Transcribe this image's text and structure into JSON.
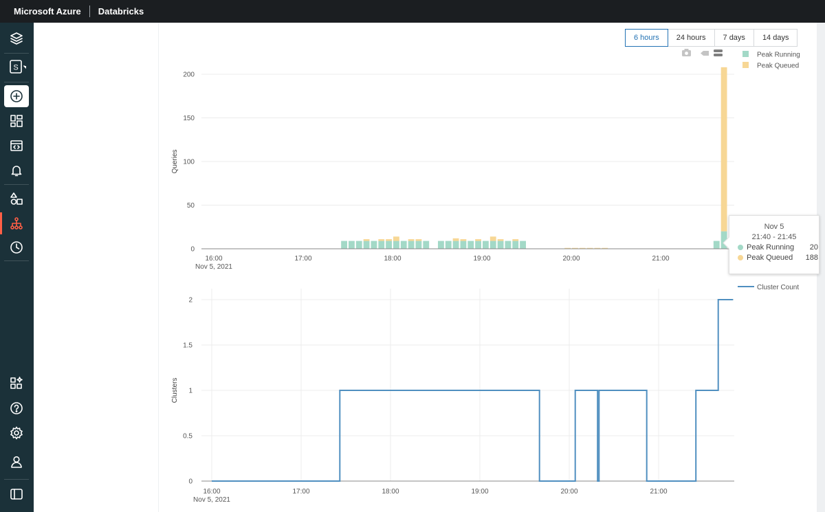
{
  "topbar": {
    "brand": "Microsoft Azure",
    "product": "Databricks"
  },
  "sidebar": {
    "items": [
      {
        "icon": "layers-icon"
      },
      {
        "icon": "workspace-switcher-icon",
        "label": "S"
      },
      {
        "icon": "create-icon"
      },
      {
        "icon": "dashboards-icon"
      },
      {
        "icon": "queries-icon"
      },
      {
        "icon": "alerts-icon"
      },
      {
        "icon": "data-icon"
      },
      {
        "icon": "sql-endpoints-icon"
      },
      {
        "icon": "history-icon"
      },
      {
        "icon": "partner-connect-icon"
      },
      {
        "icon": "help-icon"
      },
      {
        "icon": "settings-icon"
      },
      {
        "icon": "user-icon"
      },
      {
        "icon": "collapse-sidebar-icon"
      }
    ]
  },
  "time_range": {
    "options": [
      "6 hours",
      "24 hours",
      "7 days",
      "14 days"
    ],
    "selected": "6 hours"
  },
  "toolbar_icons": [
    "camera-icon",
    "compare-hover-icon",
    "closest-hover-icon"
  ],
  "tooltip": {
    "date": "Nov 5",
    "range": "21:40 - 21:45",
    "rows": [
      {
        "label": "Peak Running",
        "value": "20"
      },
      {
        "label": "Peak Queued",
        "value": "188"
      }
    ]
  },
  "colors": {
    "running": "#a3d9c7",
    "queued": "#f7d795",
    "cluster_line": "#4f8fc0",
    "accent": "#2272b4",
    "sidebar_active": "#ff5f46"
  },
  "chart_data": [
    {
      "type": "bar",
      "stacked": true,
      "ylabel": "Queries",
      "ylim": [
        0,
        210
      ],
      "yticks": [
        "200",
        "150",
        "100",
        "50",
        "0"
      ],
      "xticks": [
        "16:00",
        "17:00",
        "18:00",
        "19:00",
        "20:00",
        "21:00"
      ],
      "xsublabel": "Nov 5, 2021",
      "bin_minutes": 5,
      "legend": [
        "Peak Running",
        "Peak Queued"
      ],
      "legend_position": "top-right",
      "series": [
        {
          "name": "Peak Running",
          "points": [
            [
              "17:25",
              9
            ],
            [
              "17:30",
              9
            ],
            [
              "17:35",
              9
            ],
            [
              "17:40",
              9
            ],
            [
              "17:45",
              9
            ],
            [
              "17:50",
              9
            ],
            [
              "17:55",
              9
            ],
            [
              "18:00",
              9
            ],
            [
              "18:05",
              9
            ],
            [
              "18:10",
              9
            ],
            [
              "18:15",
              9
            ],
            [
              "18:20",
              9
            ],
            [
              "18:30",
              9
            ],
            [
              "18:35",
              9
            ],
            [
              "18:40",
              9
            ],
            [
              "18:45",
              9
            ],
            [
              "18:50",
              9
            ],
            [
              "18:55",
              9
            ],
            [
              "19:00",
              9
            ],
            [
              "19:05",
              9
            ],
            [
              "19:10",
              9
            ],
            [
              "19:15",
              9
            ],
            [
              "19:20",
              9
            ],
            [
              "19:25",
              9
            ],
            [
              "21:35",
              9
            ],
            [
              "21:40",
              20
            ]
          ]
        },
        {
          "name": "Peak Queued",
          "points": [
            [
              "17:25",
              0
            ],
            [
              "17:30",
              0
            ],
            [
              "17:35",
              0
            ],
            [
              "17:40",
              2
            ],
            [
              "17:45",
              0
            ],
            [
              "17:50",
              2
            ],
            [
              "17:55",
              2
            ],
            [
              "18:00",
              5
            ],
            [
              "18:05",
              0
            ],
            [
              "18:10",
              2
            ],
            [
              "18:15",
              2
            ],
            [
              "18:20",
              0
            ],
            [
              "18:30",
              0
            ],
            [
              "18:35",
              0
            ],
            [
              "18:40",
              3
            ],
            [
              "18:45",
              2
            ],
            [
              "18:50",
              0
            ],
            [
              "18:55",
              2
            ],
            [
              "19:00",
              0
            ],
            [
              "19:05",
              5
            ],
            [
              "19:10",
              2
            ],
            [
              "19:15",
              0
            ],
            [
              "19:20",
              2
            ],
            [
              "19:25",
              0
            ],
            [
              "19:55",
              1
            ],
            [
              "20:00",
              1
            ],
            [
              "20:05",
              1
            ],
            [
              "20:10",
              1
            ],
            [
              "20:15",
              1
            ],
            [
              "20:20",
              1
            ],
            [
              "21:35",
              0
            ],
            [
              "21:40",
              188
            ]
          ]
        }
      ]
    },
    {
      "type": "line",
      "line_shape": "step",
      "ylabel": "Clusters",
      "ylim": [
        0,
        2
      ],
      "yticks": [
        "2",
        "1.5",
        "1",
        "0.5",
        "0"
      ],
      "xticks": [
        "16:00",
        "17:00",
        "18:00",
        "19:00",
        "20:00",
        "21:00"
      ],
      "xsublabel": "Nov 5, 2021",
      "legend": [
        "Cluster Count"
      ],
      "legend_position": "top-right",
      "grid": true,
      "series": [
        {
          "name": "Cluster Count",
          "points": [
            [
              "16:00",
              0
            ],
            [
              "17:26",
              0
            ],
            [
              "17:26",
              1
            ],
            [
              "19:40",
              1
            ],
            [
              "19:40",
              0
            ],
            [
              "20:04",
              0
            ],
            [
              "20:04",
              1
            ],
            [
              "20:19",
              1
            ],
            [
              "20:19",
              0
            ],
            [
              "20:20",
              0
            ],
            [
              "20:20",
              1
            ],
            [
              "20:52",
              1
            ],
            [
              "20:52",
              0
            ],
            [
              "21:25",
              0
            ],
            [
              "21:25",
              1
            ],
            [
              "21:40",
              1
            ],
            [
              "21:40",
              2
            ],
            [
              "21:50",
              2
            ]
          ]
        }
      ]
    }
  ]
}
